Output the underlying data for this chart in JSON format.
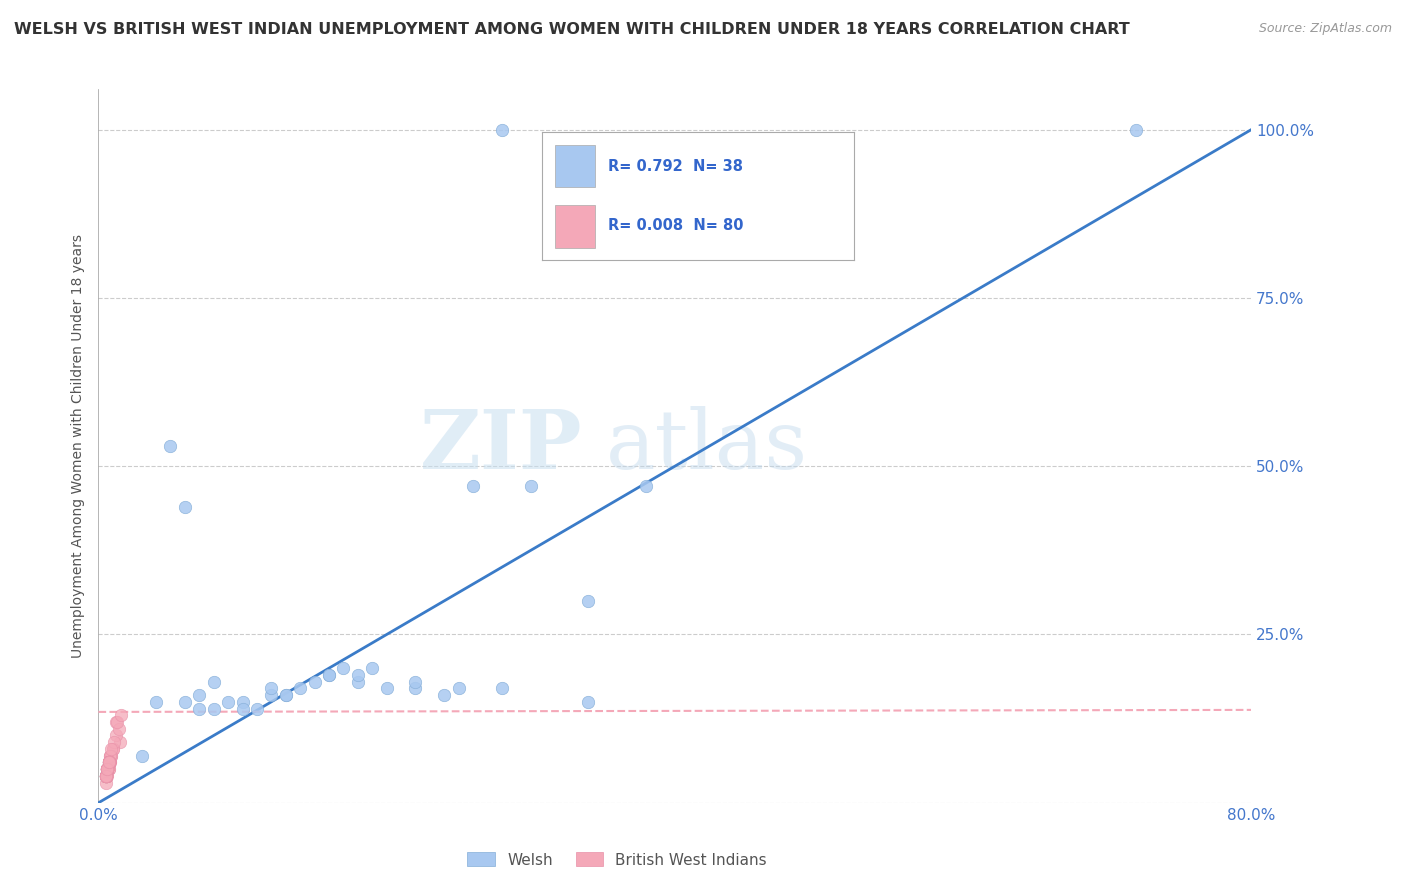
{
  "title": "WELSH VS BRITISH WEST INDIAN UNEMPLOYMENT AMONG WOMEN WITH CHILDREN UNDER 18 YEARS CORRELATION CHART",
  "source": "Source: ZipAtlas.com",
  "ylabel": "Unemployment Among Women with Children Under 18 years",
  "xlim": [
    0.0,
    0.8
  ],
  "ylim": [
    0.0,
    1.06
  ],
  "xticks": [
    0.0,
    0.2,
    0.4,
    0.6,
    0.8
  ],
  "xticklabels": [
    "0.0%",
    "",
    "",
    "",
    "80.0%"
  ],
  "yticks": [
    0.0,
    0.25,
    0.5,
    0.75,
    1.0
  ],
  "yticklabels": [
    "",
    "25.0%",
    "50.0%",
    "75.0%",
    "100.0%"
  ],
  "welsh_R": "0.792",
  "welsh_N": "38",
  "bwi_R": "0.008",
  "bwi_N": "80",
  "welsh_color": "#a8c8f0",
  "bwi_color": "#f4a8b8",
  "welsh_line_color": "#3a7bc8",
  "bwi_line_color": "#f4a8b8",
  "watermark_zip": "ZIP",
  "watermark_atlas": "atlas",
  "background_color": "#ffffff",
  "grid_color": "#cccccc",
  "welsh_scatter_x": [
    0.03,
    0.05,
    0.28,
    0.06,
    0.07,
    0.08,
    0.09,
    0.1,
    0.11,
    0.12,
    0.13,
    0.14,
    0.15,
    0.16,
    0.17,
    0.18,
    0.19,
    0.2,
    0.22,
    0.24,
    0.26,
    0.3,
    0.34,
    0.38,
    0.06,
    0.08,
    0.1,
    0.13,
    0.16,
    0.22,
    0.25,
    0.28,
    0.34,
    0.72,
    0.04,
    0.07,
    0.12,
    0.18
  ],
  "welsh_scatter_y": [
    0.07,
    0.53,
    1.0,
    0.44,
    0.16,
    0.18,
    0.15,
    0.15,
    0.14,
    0.16,
    0.16,
    0.17,
    0.18,
    0.19,
    0.2,
    0.18,
    0.2,
    0.17,
    0.17,
    0.16,
    0.47,
    0.47,
    0.3,
    0.47,
    0.15,
    0.14,
    0.14,
    0.16,
    0.19,
    0.18,
    0.17,
    0.17,
    0.15,
    1.0,
    0.15,
    0.14,
    0.17,
    0.19
  ],
  "bwi_scatter_x": [
    0.005,
    0.008,
    0.012,
    0.006,
    0.007,
    0.015,
    0.005,
    0.01,
    0.006,
    0.007,
    0.008,
    0.009,
    0.006,
    0.005,
    0.007,
    0.012,
    0.005,
    0.006,
    0.014,
    0.005,
    0.007,
    0.008,
    0.005,
    0.006,
    0.005,
    0.007,
    0.006,
    0.008,
    0.005,
    0.01,
    0.006,
    0.007,
    0.006,
    0.005,
    0.007,
    0.009,
    0.006,
    0.013,
    0.005,
    0.006,
    0.007,
    0.005,
    0.006,
    0.016,
    0.005,
    0.006,
    0.007,
    0.005,
    0.006,
    0.008,
    0.005,
    0.006,
    0.007,
    0.005,
    0.006,
    0.007,
    0.005,
    0.006,
    0.007,
    0.005,
    0.006,
    0.007,
    0.011,
    0.005,
    0.006,
    0.007,
    0.005,
    0.006,
    0.007,
    0.005,
    0.006,
    0.007,
    0.006,
    0.009,
    0.005,
    0.006,
    0.007,
    0.005,
    0.006,
    0.007
  ],
  "bwi_scatter_y": [
    0.04,
    0.07,
    0.12,
    0.05,
    0.06,
    0.09,
    0.03,
    0.08,
    0.04,
    0.05,
    0.06,
    0.07,
    0.05,
    0.04,
    0.06,
    0.1,
    0.04,
    0.05,
    0.11,
    0.04,
    0.05,
    0.06,
    0.04,
    0.05,
    0.04,
    0.06,
    0.05,
    0.07,
    0.04,
    0.08,
    0.05,
    0.06,
    0.05,
    0.04,
    0.06,
    0.07,
    0.05,
    0.12,
    0.04,
    0.05,
    0.06,
    0.04,
    0.05,
    0.13,
    0.04,
    0.05,
    0.06,
    0.04,
    0.05,
    0.07,
    0.04,
    0.05,
    0.06,
    0.04,
    0.05,
    0.06,
    0.04,
    0.05,
    0.06,
    0.04,
    0.05,
    0.06,
    0.09,
    0.04,
    0.05,
    0.06,
    0.04,
    0.05,
    0.06,
    0.04,
    0.05,
    0.06,
    0.05,
    0.08,
    0.04,
    0.05,
    0.06,
    0.04,
    0.05,
    0.06
  ],
  "bwi_single_x": [
    0.025
  ],
  "bwi_single_y": [
    0.135
  ],
  "welsh_line_x0": 0.0,
  "welsh_line_y0": 0.0,
  "welsh_line_x1": 0.8,
  "welsh_line_y1": 1.0,
  "bwi_line_x0": 0.0,
  "bwi_line_x1": 0.8,
  "bwi_line_y0": 0.135,
  "bwi_line_y1": 0.138
}
